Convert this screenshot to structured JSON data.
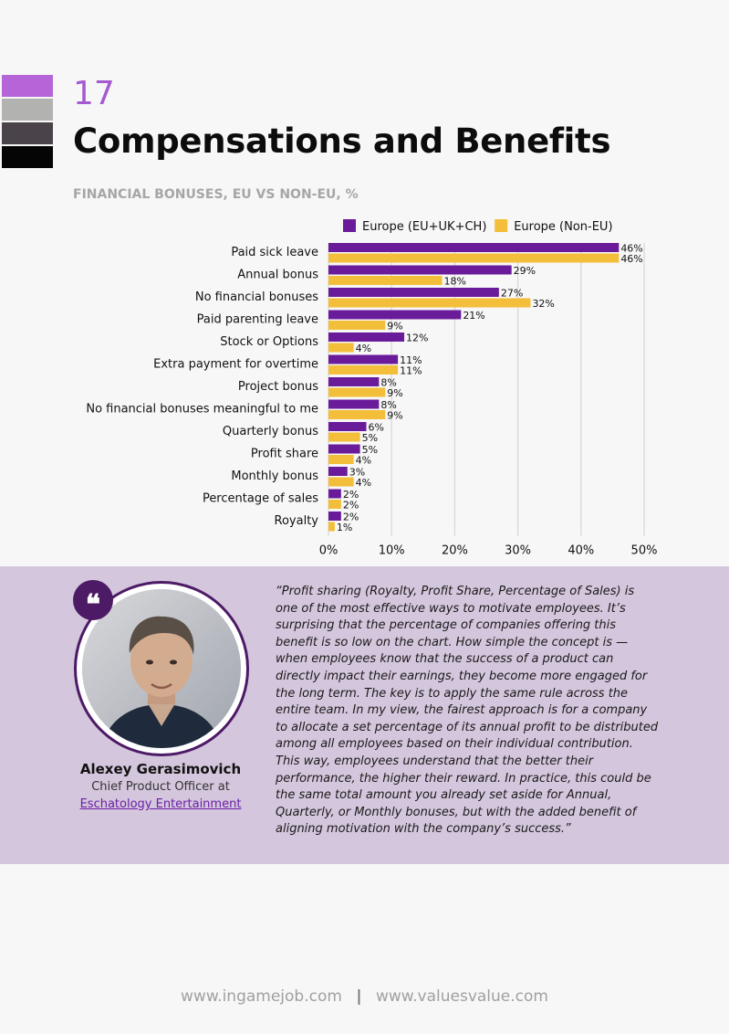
{
  "header": {
    "page_number": "17",
    "title": "Compensations and Benefits",
    "colors": [
      "#b565d8",
      "#b2b2b0",
      "#4a434a",
      "#050505"
    ]
  },
  "chart_data": {
    "type": "bar",
    "orientation": "horizontal",
    "title": "FINANCIAL BONUSES, EU VS NON-EU, %",
    "categories": [
      "Paid sick leave",
      "Annual bonus",
      "No financial bonuses",
      "Paid parenting leave",
      "Stock or Options",
      "Extra payment for overtime",
      "Project bonus",
      "No financial bonuses meaningful to me",
      "Quarterly bonus",
      "Profit share",
      "Monthly bonus",
      "Percentage of sales",
      "Royalty"
    ],
    "series": [
      {
        "name": "Europe (EU+UK+CH)",
        "color": "#6a1b9a",
        "values": [
          46,
          29,
          27,
          21,
          12,
          11,
          8,
          8,
          6,
          5,
          3,
          2,
          2
        ]
      },
      {
        "name": "Europe (Non-EU)",
        "color": "#f3be3a",
        "values": [
          46,
          18,
          32,
          9,
          4,
          11,
          9,
          9,
          5,
          4,
          4,
          2,
          1
        ]
      }
    ],
    "value_suffix": "%",
    "xlim": [
      0,
      50
    ],
    "xticks": [
      "0%",
      "10%",
      "20%",
      "30%",
      "40%",
      "50%"
    ],
    "grid": true,
    "legend": "top"
  },
  "quote": {
    "badge": "❝",
    "name": "Alexey Gerasimovich",
    "role": "Chief Product Officer at",
    "company": "Eschatology Entertainment",
    "text": "“Profit sharing (Royalty, Profit Share, Percentage of Sales) is one of the most effective ways to motivate employees. It’s surprising that the percentage of companies offering this benefit is so low on the chart. How simple the concept is — when employees know that the success of a product can directly impact their earnings, they become more engaged for the long term. The key is to apply the same rule across the entire team. In my view, the fairest approach is for a company to allocate a set percentage of its annual profit to be distributed among all employees based on their individual contribution. This way, employees understand that the better their performance, the higher their reward. In practice, this could be the same total amount you already set aside for Annual, Quarterly, or Monthly bonuses, but with the added benefit of aligning motivation with the company’s success.”"
  },
  "footer": {
    "left": "www.ingamejob.com",
    "separator": "|",
    "right": "www.valuesvalue.com"
  }
}
